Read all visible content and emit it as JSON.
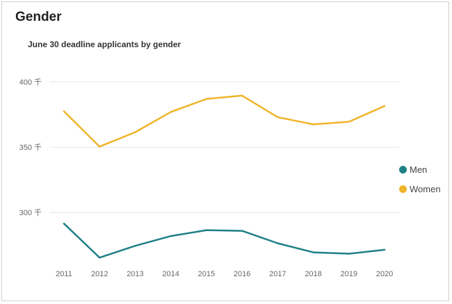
{
  "header": {
    "title": "Gender"
  },
  "chart_data": {
    "type": "line",
    "title": "June 30 deadline applicants by gender",
    "xlabel": "",
    "ylabel": "",
    "categories": [
      "2011",
      "2012",
      "2013",
      "2014",
      "2015",
      "2016",
      "2017",
      "2018",
      "2019",
      "2020"
    ],
    "y_ticks": [
      {
        "value": 300000,
        "label": "300 千"
      },
      {
        "value": 350000,
        "label": "350 千"
      },
      {
        "value": 400000,
        "label": "400 千"
      }
    ],
    "ylim": [
      264000,
      400000
    ],
    "grid": true,
    "legend_position": "right",
    "series": [
      {
        "name": "Men",
        "color": "#1f7f86",
        "values": [
          291500,
          265500,
          274500,
          282000,
          286500,
          286000,
          276500,
          269500,
          268500,
          271500
        ]
      },
      {
        "name": "Women",
        "color": "#f0b429",
        "values": [
          377500,
          350500,
          361500,
          377000,
          387000,
          389500,
          373000,
          367500,
          369500,
          381500
        ]
      }
    ]
  }
}
